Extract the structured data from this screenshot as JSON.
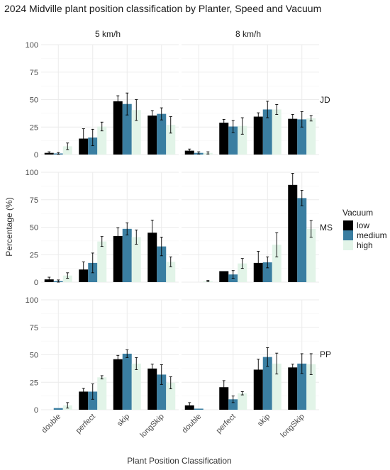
{
  "chart_data": {
    "type": "bar",
    "title": "2024 Midville plant position classification by Planter, Speed and Vacuum",
    "xlabel": "Plant Position Classification",
    "ylabel": "Percentage (%)",
    "ylim": [
      0,
      100
    ],
    "yticks": [
      0,
      25,
      50,
      75,
      100
    ],
    "grid": true,
    "legend": {
      "title": "Vacuum",
      "position": "right"
    },
    "categories": [
      "double",
      "perfect",
      "skip",
      "longSkip"
    ],
    "series": [
      {
        "name": "low",
        "color": "#000000"
      },
      {
        "name": "medium",
        "color": "#3a7ea1"
      },
      {
        "name": "high",
        "color": "#e2f4e8"
      }
    ],
    "columns": [
      "5 km/h",
      "8 km/h"
    ],
    "rows": [
      "JD",
      "MS",
      "PP"
    ],
    "panels": [
      {
        "row": "JD",
        "column": "5 km/h",
        "values": [
          [
            1.5,
            14.5,
            48.5,
            35.5
          ],
          [
            1.0,
            15.5,
            46.0,
            37.0
          ],
          [
            7.5,
            25.5,
            40.5,
            27.0
          ]
        ],
        "errors": [
          [
            1.0,
            9.0,
            5.0,
            4.5
          ],
          [
            0.8,
            7.5,
            10.0,
            5.5
          ],
          [
            3.0,
            4.0,
            9.5,
            7.5
          ]
        ]
      },
      {
        "row": "JD",
        "column": "8 km/h",
        "values": [
          [
            3.5,
            29.0,
            34.5,
            32.5
          ],
          [
            1.5,
            25.5,
            41.0,
            32.0
          ],
          [
            1.5,
            26.0,
            41.0,
            33.0
          ]
        ],
        "errors": [
          [
            1.5,
            3.0,
            3.5,
            4.0
          ],
          [
            1.0,
            5.5,
            7.5,
            7.0
          ],
          [
            1.0,
            7.5,
            4.5,
            2.5
          ]
        ]
      },
      {
        "row": "MS",
        "column": "5 km/h",
        "values": [
          [
            2.5,
            11.5,
            42.0,
            45.0
          ],
          [
            1.0,
            17.5,
            48.5,
            32.5
          ],
          [
            6.0,
            37.0,
            41.0,
            18.5
          ]
        ],
        "errors": [
          [
            2.0,
            7.0,
            7.5,
            11.5
          ],
          [
            1.0,
            9.0,
            5.5,
            8.5
          ],
          [
            2.5,
            4.5,
            6.5,
            4.5
          ]
        ]
      },
      {
        "row": "MS",
        "column": "8 km/h",
        "values": [
          [
            0.0,
            10.0,
            17.5,
            88.5
          ],
          [
            0.0,
            7.0,
            18.0,
            76.5
          ],
          [
            1.0,
            17.0,
            34.0,
            48.5
          ]
        ],
        "errors": [
          [
            0.0,
            0.0,
            10.5,
            10.5
          ],
          [
            0.0,
            3.5,
            5.0,
            7.0
          ],
          [
            0.5,
            4.5,
            11.0,
            7.5
          ]
        ]
      },
      {
        "row": "PP",
        "column": "5 km/h",
        "values": [
          [
            0.0,
            16.5,
            46.0,
            37.5
          ],
          [
            1.5,
            16.5,
            51.0,
            32.0
          ],
          [
            4.0,
            29.5,
            42.0,
            24.5
          ]
        ],
        "errors": [
          [
            0.0,
            3.0,
            3.5,
            4.0
          ],
          [
            0.0,
            7.0,
            3.5,
            9.0
          ],
          [
            2.5,
            1.5,
            5.5,
            5.5
          ]
        ]
      },
      {
        "row": "PP",
        "column": "8 km/h",
        "values": [
          [
            4.0,
            20.5,
            36.5,
            38.5
          ],
          [
            1.0,
            9.5,
            48.0,
            42.0
          ],
          [
            0.0,
            15.0,
            42.0,
            41.5
          ]
        ],
        "errors": [
          [
            2.5,
            6.0,
            9.5,
            3.0
          ],
          [
            0.0,
            3.0,
            8.5,
            9.0
          ],
          [
            0.0,
            1.5,
            9.5,
            9.5
          ]
        ]
      }
    ]
  }
}
